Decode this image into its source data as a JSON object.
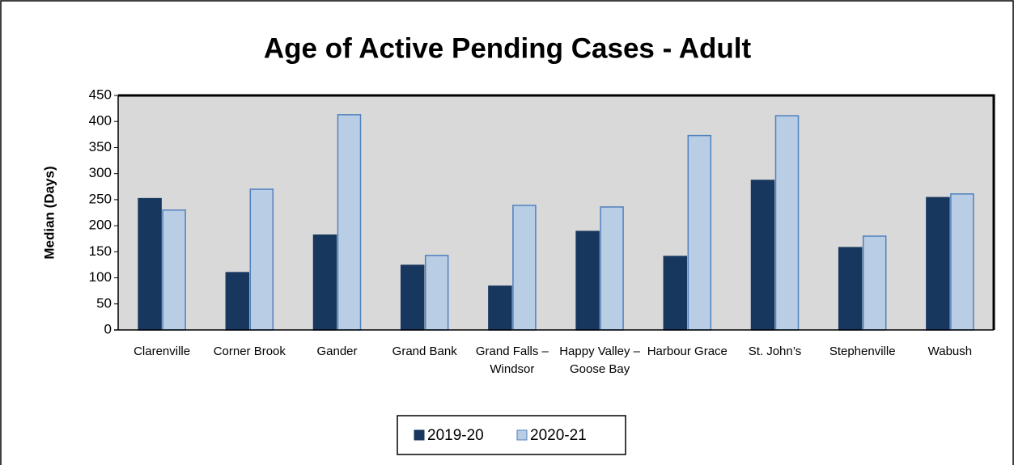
{
  "chart_data": {
    "type": "bar",
    "title": "Age of Active Pending Cases - Adult",
    "y_label": "Median (Days)",
    "categories": [
      "Clarenville",
      "Corner Brook",
      "Gander",
      "Grand Bank",
      "Grand Falls – Windsor",
      "Happy Valley – Goose Bay",
      "Harbour Grace",
      "St. John’s",
      "Stephenville",
      "Wabush"
    ],
    "series": [
      {
        "name": "2019-20",
        "color": "#17375e",
        "values": [
          252,
          110,
          182,
          124,
          84,
          189,
          141,
          287,
          158,
          254
        ]
      },
      {
        "name": "2020-21",
        "color": "#b9cde5",
        "values": [
          230,
          270,
          413,
          143,
          239,
          236,
          373,
          411,
          180,
          261
        ]
      }
    ],
    "ylim": [
      0,
      450
    ],
    "yticks": [
      0,
      50,
      100,
      150,
      200,
      250,
      300,
      350,
      400,
      450
    ],
    "grid": false,
    "legend": "bottom"
  }
}
